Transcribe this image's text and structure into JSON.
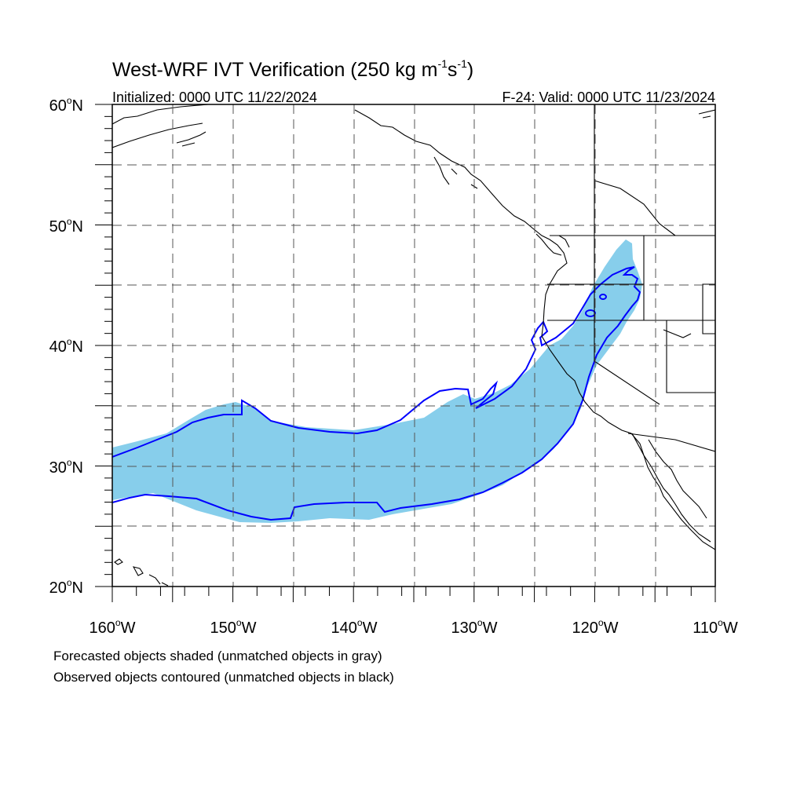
{
  "title": {
    "main": "West-WRF IVT Verification (250 kg m",
    "exp1": "-1",
    "mid": "s",
    "exp2": "-1",
    "close": ")"
  },
  "subtitle_left": "Initialized: 0000 UTC 11/22/2024",
  "subtitle_right": "F-24: Valid: 0000 UTC 11/23/2024",
  "map": {
    "lon_range": [
      -160,
      -110
    ],
    "lat_range": [
      20,
      60
    ],
    "lon_labels": [
      "160",
      "150",
      "140",
      "130",
      "120",
      "110"
    ],
    "lon_suffix": "W",
    "lat_labels": [
      "20",
      "30",
      "40",
      "50",
      "60"
    ],
    "lat_suffix": "N",
    "degree_symbol": "o",
    "grid": "dashed, every 5 degrees",
    "colors": {
      "forecast_fill": "#87ceeb",
      "observed_contour": "#0000ff",
      "coastline": "#000000",
      "grid": "#555555"
    }
  },
  "legend": {
    "line1": "Forecasted objects shaded (unmatched objects in gray)",
    "line2": "Observed objects contoured (unmatched objects in black)"
  }
}
